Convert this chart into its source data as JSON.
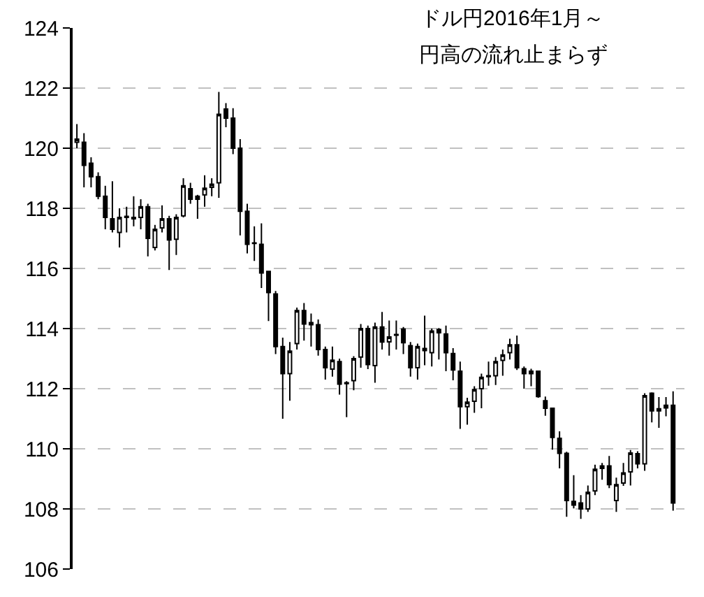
{
  "chart_data": {
    "type": "candlestick",
    "annotations": [
      "ドル円2016年1月～",
      "円高の流れ止まらず"
    ],
    "categories": [
      null,
      null,
      null,
      null,
      null,
      null,
      null,
      null,
      null,
      null,
      null,
      null,
      null,
      null,
      null,
      null,
      null,
      null,
      null,
      null,
      null,
      null,
      null,
      null,
      null,
      null,
      null,
      null,
      null,
      null,
      null,
      null,
      null,
      null,
      null,
      null,
      null,
      null,
      null,
      null,
      null,
      null,
      null,
      null,
      null,
      null,
      null,
      null,
      null,
      null,
      null,
      null,
      null,
      null,
      null,
      null,
      null,
      null,
      null,
      null,
      null,
      null,
      null,
      null,
      null,
      null,
      null,
      null,
      null,
      null,
      null,
      null,
      null,
      null,
      null,
      null,
      null,
      null,
      null,
      null,
      null,
      null,
      null,
      null,
      null
    ],
    "ohlc": [
      [
        120.2,
        120.8,
        120.0,
        120.3
      ],
      [
        120.2,
        120.5,
        118.7,
        119.43
      ],
      [
        119.5,
        119.7,
        118.7,
        119.05
      ],
      [
        119.05,
        119.2,
        118.3,
        118.4
      ],
      [
        118.4,
        118.75,
        117.3,
        117.7
      ],
      [
        117.65,
        118.9,
        117.2,
        117.3
      ],
      [
        117.2,
        118.0,
        116.7,
        117.7
      ],
      [
        117.73,
        118.05,
        117.2,
        117.7
      ],
      [
        117.7,
        118.4,
        117.4,
        117.65
      ],
      [
        117.7,
        118.3,
        117.3,
        118.05
      ],
      [
        118.05,
        118.15,
        116.4,
        117.0
      ],
      [
        116.7,
        117.45,
        116.6,
        117.3
      ],
      [
        117.35,
        118.1,
        117.2,
        117.65
      ],
      [
        117.65,
        117.75,
        115.95,
        116.95
      ],
      [
        116.97,
        117.8,
        116.45,
        117.7
      ],
      [
        117.75,
        119.0,
        117.7,
        118.75
      ],
      [
        118.65,
        118.85,
        118.15,
        118.3
      ],
      [
        118.4,
        118.45,
        117.65,
        118.3
      ],
      [
        118.45,
        119.1,
        118.05,
        118.67
      ],
      [
        118.7,
        119.0,
        118.4,
        118.8
      ],
      [
        118.85,
        121.87,
        118.35,
        121.13
      ],
      [
        121.3,
        121.5,
        120.7,
        121.0
      ],
      [
        121.0,
        121.33,
        119.8,
        120.0
      ],
      [
        120.0,
        120.3,
        117.1,
        117.9
      ],
      [
        117.9,
        118.15,
        116.5,
        116.8
      ],
      [
        116.85,
        117.4,
        116.25,
        116.83
      ],
      [
        116.8,
        117.5,
        115.35,
        115.85
      ],
      [
        115.9,
        115.9,
        114.25,
        115.2
      ],
      [
        115.15,
        115.25,
        113.15,
        113.4
      ],
      [
        113.4,
        113.7,
        111.0,
        112.5
      ],
      [
        112.5,
        113.55,
        111.6,
        113.25
      ],
      [
        113.5,
        114.7,
        113.3,
        114.6
      ],
      [
        114.6,
        114.85,
        113.6,
        114.15
      ],
      [
        114.2,
        114.5,
        113.4,
        114.13
      ],
      [
        114.13,
        114.3,
        113.1,
        113.3
      ],
      [
        113.3,
        113.4,
        112.3,
        112.7
      ],
      [
        112.65,
        113.4,
        112.4,
        112.95
      ],
      [
        112.9,
        113.0,
        111.8,
        112.15
      ],
      [
        112.2,
        112.25,
        111.05,
        112.17
      ],
      [
        112.27,
        113.08,
        111.95,
        113.0
      ],
      [
        113.05,
        114.15,
        112.7,
        114.0
      ],
      [
        114.0,
        114.1,
        112.65,
        112.8
      ],
      [
        112.77,
        114.2,
        112.2,
        114.05
      ],
      [
        114.05,
        114.55,
        113.3,
        113.55
      ],
      [
        113.56,
        114.27,
        113.1,
        113.72
      ],
      [
        113.8,
        114.27,
        113.3,
        113.78
      ],
      [
        113.98,
        114.05,
        113.15,
        113.53
      ],
      [
        113.43,
        113.55,
        112.4,
        112.7
      ],
      [
        112.7,
        113.5,
        112.3,
        113.4
      ],
      [
        113.34,
        114.43,
        112.78,
        113.27
      ],
      [
        113.2,
        114.0,
        112.74,
        113.92
      ],
      [
        113.97,
        114.02,
        112.97,
        113.86
      ],
      [
        113.82,
        114.1,
        112.58,
        113.2
      ],
      [
        113.17,
        113.35,
        112.28,
        112.62
      ],
      [
        112.58,
        112.9,
        110.66,
        111.4
      ],
      [
        111.4,
        111.7,
        110.8,
        111.55
      ],
      [
        111.58,
        112.08,
        111.2,
        111.97
      ],
      [
        112.0,
        112.5,
        111.35,
        112.38
      ],
      [
        112.4,
        112.9,
        112.1,
        112.43
      ],
      [
        112.43,
        113.05,
        112.12,
        112.9
      ],
      [
        112.94,
        113.3,
        112.43,
        113.12
      ],
      [
        113.2,
        113.66,
        112.97,
        113.46
      ],
      [
        113.46,
        113.77,
        112.62,
        112.7
      ],
      [
        112.66,
        112.74,
        112.0,
        112.5
      ],
      [
        112.5,
        112.66,
        112.08,
        112.58
      ],
      [
        112.58,
        112.58,
        111.7,
        111.74
      ],
      [
        111.6,
        111.74,
        111.1,
        111.35
      ],
      [
        111.35,
        111.35,
        109.97,
        110.38
      ],
      [
        110.35,
        110.58,
        109.35,
        109.85
      ],
      [
        109.85,
        109.9,
        107.74,
        108.28
      ],
      [
        108.25,
        109.12,
        108.02,
        108.13
      ],
      [
        108.2,
        108.46,
        107.67,
        108.0
      ],
      [
        108.0,
        108.78,
        107.9,
        108.55
      ],
      [
        108.6,
        109.47,
        108.46,
        109.32
      ],
      [
        109.43,
        109.53,
        108.97,
        109.35
      ],
      [
        109.43,
        109.76,
        108.69,
        108.81
      ],
      [
        108.28,
        109.04,
        107.9,
        108.81
      ],
      [
        108.86,
        109.53,
        108.77,
        109.2
      ],
      [
        109.23,
        109.96,
        108.78,
        109.86
      ],
      [
        109.84,
        109.92,
        109.35,
        109.5
      ],
      [
        109.5,
        111.85,
        109.27,
        111.77
      ],
      [
        111.85,
        111.88,
        110.88,
        111.26
      ],
      [
        111.33,
        111.72,
        110.7,
        111.26
      ],
      [
        111.36,
        111.72,
        111.08,
        111.45
      ],
      [
        111.45,
        111.91,
        107.94,
        108.2
      ]
    ],
    "ylim": [
      106,
      124
    ],
    "yticks": [
      106,
      108,
      110,
      112,
      114,
      116,
      118,
      120,
      122,
      124
    ],
    "grid": "y"
  }
}
